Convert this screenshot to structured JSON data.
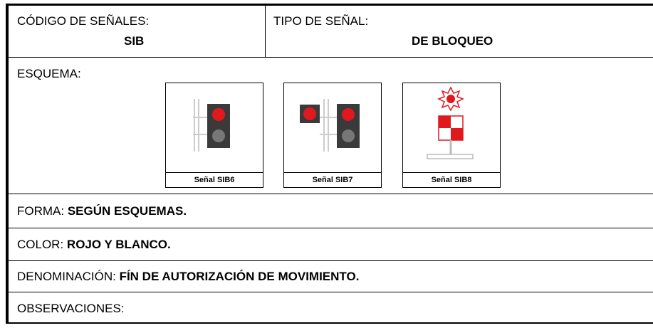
{
  "header": {
    "code_label": "CÓDIGO DE SEÑALES:",
    "code": "SIB",
    "type_label": "TIPO DE SEÑAL:",
    "type": "DE BLOQUEO"
  },
  "schema": {
    "label": "ESQUEMA:",
    "figures": [
      {
        "caption": "Señal SIB6"
      },
      {
        "caption": "Señal SIB7"
      },
      {
        "caption": "Señal SIB8"
      }
    ]
  },
  "rows": [
    {
      "label": "FORMA:",
      "value": "SEGÚN ESQUEMAS."
    },
    {
      "label": "COLOR:",
      "value": "ROJO Y BLANCO."
    },
    {
      "label": "DENOMINACIÓN:",
      "value": "FÍN DE AUTORIZACIÓN DE MOVIMIENTO."
    },
    {
      "label": "OBSERVACIONES:"
    }
  ]
}
